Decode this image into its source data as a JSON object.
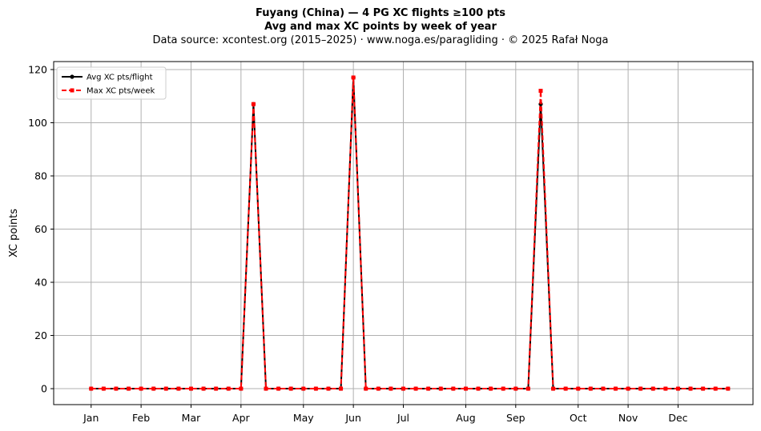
{
  "header": {
    "title_line1": "Fuyang (China)  —  4 PG XC flights ≥100 pts",
    "title_line2": "Avg and max XC points by week of year",
    "source": "Data source: xcontest.org (2015–2025)  ·  www.noga.es/paragliding  ·  © 2025 Rafał Noga"
  },
  "chart_data": {
    "type": "line",
    "title": "Fuyang (China)  —  4 PG XC flights ≥100 pts",
    "subtitle": "Avg and max XC points by week of year",
    "xlabel": "",
    "ylabel": "XC points",
    "xlim": [
      -2,
      54
    ],
    "ylim": [
      -6,
      123
    ],
    "x_ticks": [
      {
        "label": "Jan",
        "week": 1
      },
      {
        "label": "Feb",
        "week": 5
      },
      {
        "label": "Mar",
        "week": 9
      },
      {
        "label": "Apr",
        "week": 13
      },
      {
        "label": "May",
        "week": 18
      },
      {
        "label": "Jun",
        "week": 22
      },
      {
        "label": "Jul",
        "week": 26
      },
      {
        "label": "Aug",
        "week": 31
      },
      {
        "label": "Sep",
        "week": 35
      },
      {
        "label": "Oct",
        "week": 40
      },
      {
        "label": "Nov",
        "week": 44
      },
      {
        "label": "Dec",
        "week": 48
      }
    ],
    "y_ticks": [
      0,
      20,
      40,
      60,
      80,
      100,
      120
    ],
    "grid": true,
    "legend_position": "top-left",
    "x": [
      1,
      2,
      3,
      4,
      5,
      6,
      7,
      8,
      9,
      10,
      11,
      12,
      13,
      14,
      15,
      16,
      17,
      18,
      19,
      20,
      21,
      22,
      23,
      24,
      25,
      26,
      27,
      28,
      29,
      30,
      31,
      32,
      33,
      34,
      35,
      36,
      37,
      38,
      39,
      40,
      41,
      42,
      43,
      44,
      45,
      46,
      47,
      48,
      49,
      50,
      51,
      52
    ],
    "series": [
      {
        "name": "Avg XC pts/flight",
        "color": "#000000",
        "style": "solid",
        "marker": "circle",
        "values": [
          0,
          0,
          0,
          0,
          0,
          0,
          0,
          0,
          0,
          0,
          0,
          0,
          0,
          107,
          0,
          0,
          0,
          0,
          0,
          0,
          0,
          117,
          0,
          0,
          0,
          0,
          0,
          0,
          0,
          0,
          0,
          0,
          0,
          0,
          0,
          0,
          107,
          0,
          0,
          0,
          0,
          0,
          0,
          0,
          0,
          0,
          0,
          0,
          0,
          0,
          0,
          0
        ]
      },
      {
        "name": "Max XC pts/week",
        "color": "#ff0000",
        "style": "dashed",
        "marker": "square",
        "values": [
          0,
          0,
          0,
          0,
          0,
          0,
          0,
          0,
          0,
          0,
          0,
          0,
          0,
          107,
          0,
          0,
          0,
          0,
          0,
          0,
          0,
          117,
          0,
          0,
          0,
          0,
          0,
          0,
          0,
          0,
          0,
          0,
          0,
          0,
          0,
          0,
          112,
          0,
          0,
          0,
          0,
          0,
          0,
          0,
          0,
          0,
          0,
          0,
          0,
          0,
          0,
          0
        ]
      }
    ]
  }
}
